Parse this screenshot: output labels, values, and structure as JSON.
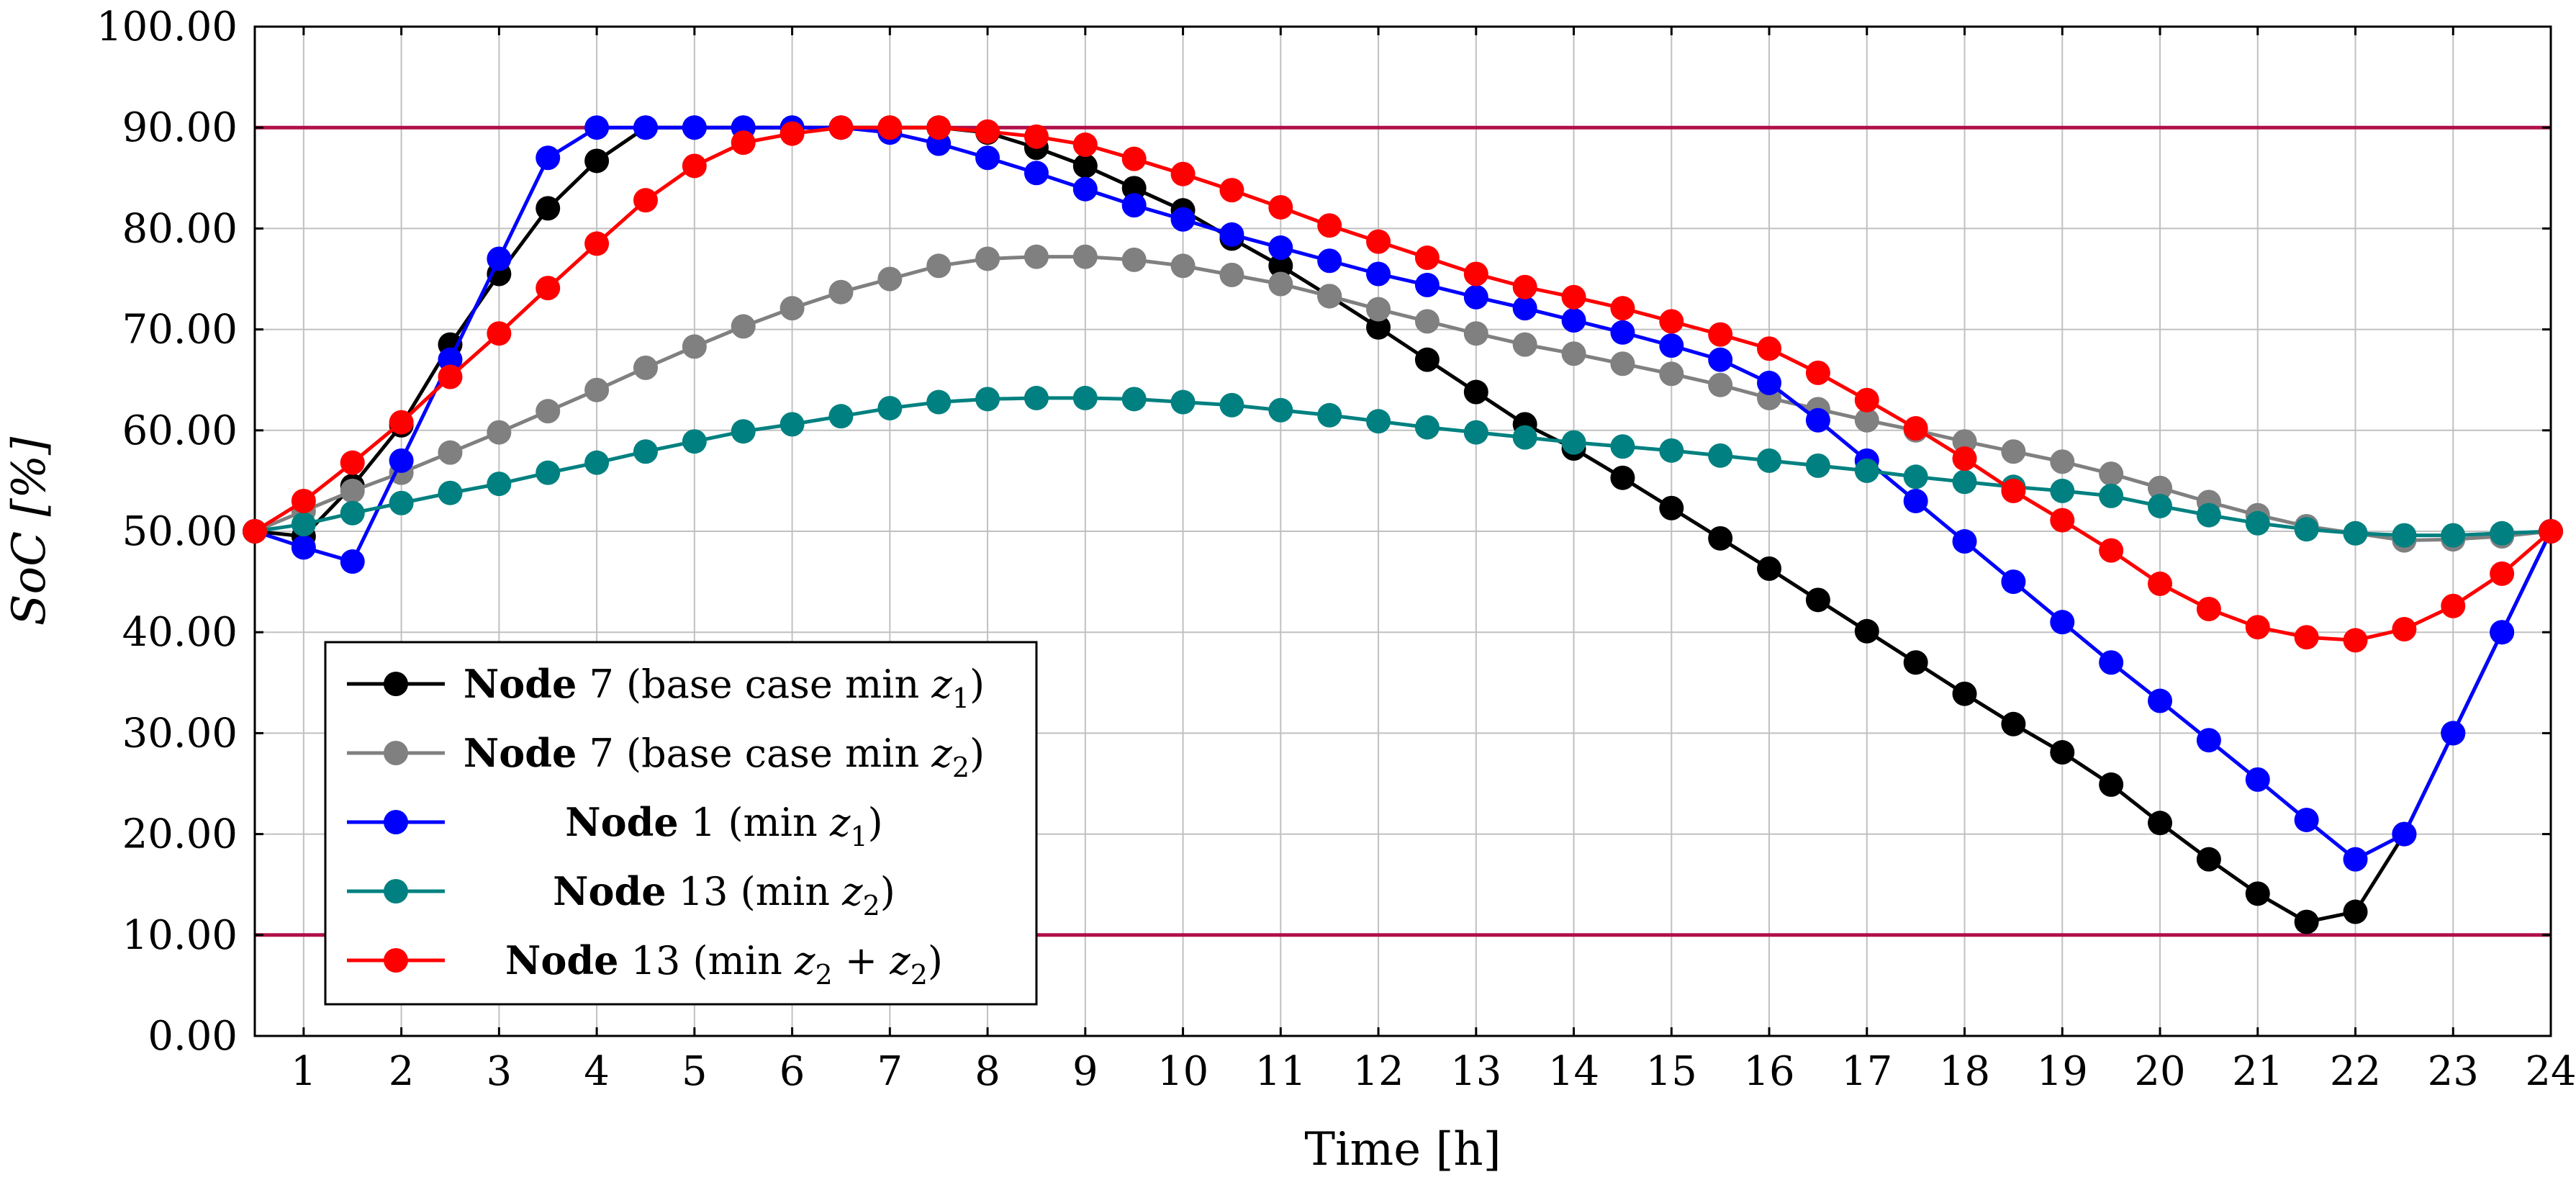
{
  "chart_data": {
    "type": "line",
    "title": "",
    "xlabel": "Time [h]",
    "ylabel": "SoC [%]",
    "xlim": [
      0.5,
      24
    ],
    "ylim": [
      0,
      100
    ],
    "x_ticks": [
      1,
      2,
      3,
      4,
      5,
      6,
      7,
      8,
      9,
      10,
      11,
      12,
      13,
      14,
      15,
      16,
      17,
      18,
      19,
      20,
      21,
      22,
      23,
      24
    ],
    "y_ticks": [
      "0.00",
      "10.00",
      "20.00",
      "30.00",
      "40.00",
      "50.00",
      "60.00",
      "70.00",
      "80.00",
      "90.00",
      "100.00"
    ],
    "grid": true,
    "reference_lines": [
      {
        "y": 90,
        "color": "#b0104a"
      },
      {
        "y": 10,
        "color": "#b0104a"
      }
    ],
    "x": [
      0.5,
      1,
      1.5,
      2,
      2.5,
      3,
      3.5,
      4,
      4.5,
      5,
      5.5,
      6,
      6.5,
      7,
      7.5,
      8,
      8.5,
      9,
      9.5,
      10,
      10.5,
      11,
      11.5,
      12,
      12.5,
      13,
      13.5,
      14,
      14.5,
      15,
      15.5,
      16,
      16.5,
      17,
      17.5,
      18,
      18.5,
      19,
      19.5,
      20,
      20.5,
      21,
      21.5,
      22,
      22.5,
      23,
      23.5,
      24
    ],
    "series": [
      {
        "name_bold": "Node",
        "name_rest": " 7 (base case min ",
        "name_var": "z",
        "name_sub": "1",
        "name_tail": ")",
        "color": "#000000",
        "values": [
          50,
          49.5,
          54.5,
          60.5,
          68.5,
          75.5,
          82,
          86.7,
          90,
          90,
          90,
          90,
          90,
          90,
          90,
          89.5,
          88,
          86.2,
          84,
          81.8,
          79,
          76.3,
          73.3,
          70.2,
          67,
          63.8,
          60.6,
          58.2,
          55.3,
          52.3,
          49.3,
          46.3,
          43.2,
          40.1,
          37,
          33.9,
          30.9,
          28.1,
          24.9,
          21.1,
          17.5,
          14.1,
          11.3,
          12.3,
          20,
          30,
          40,
          50
        ]
      },
      {
        "name_bold": "Node",
        "name_rest": " 7 (base case min ",
        "name_var": "z",
        "name_sub": "2",
        "name_tail": ")",
        "color": "#808080",
        "values": [
          50,
          52,
          54,
          55.8,
          57.8,
          59.8,
          61.9,
          64,
          66.2,
          68.3,
          70.3,
          72.1,
          73.7,
          75,
          76.3,
          77,
          77.2,
          77.2,
          76.9,
          76.3,
          75.4,
          74.5,
          73.3,
          72,
          70.8,
          69.6,
          68.5,
          67.6,
          66.6,
          65.6,
          64.5,
          63.2,
          62.1,
          61,
          60,
          58.9,
          57.9,
          56.9,
          55.7,
          54.3,
          52.9,
          51.6,
          50.5,
          49.8,
          49.1,
          49.2,
          49.5,
          50
        ]
      },
      {
        "name_bold": "Node",
        "name_rest": " 1 (min ",
        "name_var": "z",
        "name_sub": "1",
        "name_tail": ")",
        "color": "#0000ff",
        "values": [
          50,
          48.4,
          47,
          57,
          67,
          77,
          87,
          90,
          90,
          90,
          90,
          90,
          90,
          89.5,
          88.4,
          87,
          85.5,
          83.9,
          82.3,
          80.9,
          79.4,
          78.1,
          76.8,
          75.5,
          74.4,
          73.2,
          72.1,
          70.9,
          69.7,
          68.4,
          67,
          64.7,
          61,
          57,
          53,
          49,
          45,
          41,
          37,
          33.2,
          29.3,
          25.4,
          21.4,
          17.5,
          20,
          30,
          40,
          50
        ]
      },
      {
        "name_bold": "Node",
        "name_rest": " 13 (min ",
        "name_var": "z",
        "name_sub": "2",
        "name_tail": ")",
        "color": "#008080",
        "values": [
          50,
          50.7,
          51.8,
          52.8,
          53.8,
          54.7,
          55.8,
          56.8,
          57.9,
          58.9,
          59.9,
          60.6,
          61.4,
          62.2,
          62.8,
          63.1,
          63.2,
          63.2,
          63.1,
          62.8,
          62.5,
          62,
          61.5,
          60.9,
          60.3,
          59.8,
          59.3,
          58.8,
          58.4,
          58,
          57.5,
          57,
          56.5,
          56,
          55.4,
          54.9,
          54.4,
          54,
          53.5,
          52.5,
          51.6,
          50.8,
          50.2,
          49.8,
          49.6,
          49.6,
          49.8,
          50
        ]
      },
      {
        "name_bold": "Node",
        "name_rest": " 13 (min ",
        "name_var": "z",
        "name_sub": "2",
        "name_tail": " + z",
        "name_tail_sub": "2",
        "name_tail_end": ")",
        "color": "#ff0000",
        "values": [
          50,
          53,
          56.8,
          60.8,
          65.3,
          69.6,
          74.1,
          78.5,
          82.8,
          86.2,
          88.5,
          89.4,
          90,
          90,
          90,
          89.6,
          89.1,
          88.3,
          86.9,
          85.4,
          83.8,
          82.1,
          80.3,
          78.7,
          77.1,
          75.5,
          74.2,
          73.2,
          72.1,
          70.8,
          69.5,
          68.1,
          65.7,
          63,
          60.2,
          57.2,
          54,
          51.1,
          48.1,
          44.8,
          42.3,
          40.5,
          39.5,
          39.2,
          40.3,
          42.6,
          45.8,
          50
        ]
      }
    ],
    "legend_position": "bottom-left"
  }
}
